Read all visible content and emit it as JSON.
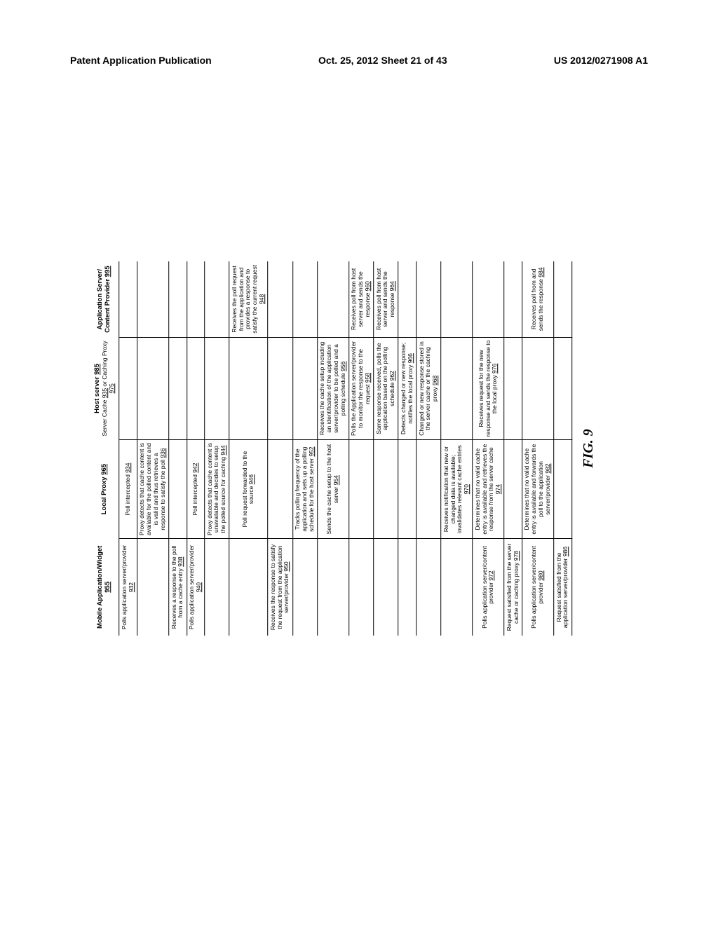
{
  "header": {
    "left": "Patent Application Publication",
    "center": "Oct. 25, 2012  Sheet 21 of 43",
    "right": "US 2012/0271908 A1"
  },
  "figure_label": "FIG. 9",
  "columns": [
    {
      "title": "Mobile Application/Widget 955"
    },
    {
      "title": "Local Proxy 965"
    },
    {
      "title": "Host server 985",
      "subtitle": "Server Cache 935 or Caching Proxy 975"
    },
    {
      "title": "Application Server/\nContent Provider 995"
    }
  ],
  "rows": [
    {
      "c0": "Polls application server/provider ",
      "r0": "932",
      "c1": "Poll intercepted ",
      "r1": "934",
      "c2": "",
      "r2": "",
      "c3": "",
      "r3": ""
    },
    {
      "c0": "",
      "r0": "",
      "c1": "Proxy detects that cache content is available for the polled content and is valid and thus retrieves a response to satisfy the poll ",
      "r1": "936",
      "c2": "",
      "r2": "",
      "c3": "",
      "r3": ""
    },
    {
      "c0": "Receives a response to the poll from a cache entry ",
      "r0": "938",
      "c1": "",
      "r1": "",
      "c2": "",
      "r2": "",
      "c3": "",
      "r3": ""
    },
    {
      "c0": "Polls application server/provider ",
      "r0": "940",
      "c1": "Poll intercepted ",
      "r1": "942",
      "c2": "",
      "r2": "",
      "c3": "",
      "r3": ""
    },
    {
      "c0": "",
      "r0": "",
      "c1": "Proxy detects that cache content is unavailable and decides to setup the polled source for caching ",
      "r1": "944",
      "c2": "",
      "r2": "",
      "c3": "",
      "r3": ""
    },
    {
      "c0": "",
      "r0": "",
      "c1": "Poll request forwarded to the source ",
      "r1": "946",
      "c2": "",
      "r2": "",
      "c3": "Receives the poll request from the application and provides a response to satisfy the current request ",
      "r3": "948"
    },
    {
      "c0": "Receives the response to satisfy the request from the application server/provider ",
      "r0": "950",
      "c1": "",
      "r1": "",
      "c2": "",
      "r2": "",
      "c3": "",
      "r3": ""
    },
    {
      "c0": "",
      "r0": "",
      "c1": "Tracks polling frequency of the application and sets up a polling schedule for the host server ",
      "r1": "952",
      "c2": "",
      "r2": "",
      "c3": "",
      "r3": ""
    },
    {
      "c0": "",
      "r0": "",
      "c1": "Sends the cache setup to the host server ",
      "r1": "954",
      "c2": "Receives the cache setup including an identification of the application server/provider to be polled and a polling schedule ",
      "r2": "956",
      "c3": "",
      "r3": ""
    },
    {
      "c0": "",
      "r0": "",
      "c1": "",
      "r1": "",
      "c2": "Polls the Application server/provider to monitor the response to the request ",
      "r2": "958",
      "c3": "Receives poll from host server and sends the response ",
      "r3": "960"
    },
    {
      "c0": "",
      "r0": "",
      "c1": "",
      "r1": "",
      "c2": "Same response received, polls the application based on the polling schedule ",
      "r2": "962",
      "c3": "Receives poll from host server and sends the response ",
      "r3": "964"
    },
    {
      "c0": "",
      "r0": "",
      "c1": "",
      "r1": "",
      "c2": "Detects changed or new response; notifies the local proxy ",
      "r2": "966",
      "c3": "",
      "r3": ""
    },
    {
      "c0": "",
      "r0": "",
      "c1": "",
      "r1": "",
      "c2": "Changed or new response stored in the server cache or the caching proxy ",
      "r2": "968",
      "c3": "",
      "r3": ""
    },
    {
      "c0": "",
      "r0": "",
      "c1": "Receives notification that new or changed data is available; invalidates relevant cache entries ",
      "r1": "970",
      "c2": "",
      "r2": "",
      "c3": "",
      "r3": ""
    },
    {
      "c0": "Polls application server/content provider ",
      "r0": "972",
      "c1": "Determines that no valid cache entry is available and retrieves the response from the server cache ",
      "r1": "974",
      "c2": "Receives request for the new response and sends the response to the local proxy ",
      "r2": "976",
      "c3": "",
      "r3": ""
    },
    {
      "c0": "Request satisfied from the server cache or caching proxy ",
      "r0": "978",
      "c1": "",
      "r1": "",
      "c2": "",
      "r2": "",
      "c3": "",
      "r3": ""
    },
    {
      "c0": "Polls application server/content provider ",
      "r0": "980",
      "c1": "Determines that no valid cache entry is available and forwards the poll to the application server/provider ",
      "r1": "982",
      "c2": "",
      "r2": "",
      "c3": "Receives poll from and sends the response ",
      "r3": "984"
    },
    {
      "c0": "Request satisfied from the application server/provider ",
      "r0": "986",
      "c1": "",
      "r1": "",
      "c2": "",
      "r2": "",
      "c3": "",
      "r3": ""
    }
  ]
}
